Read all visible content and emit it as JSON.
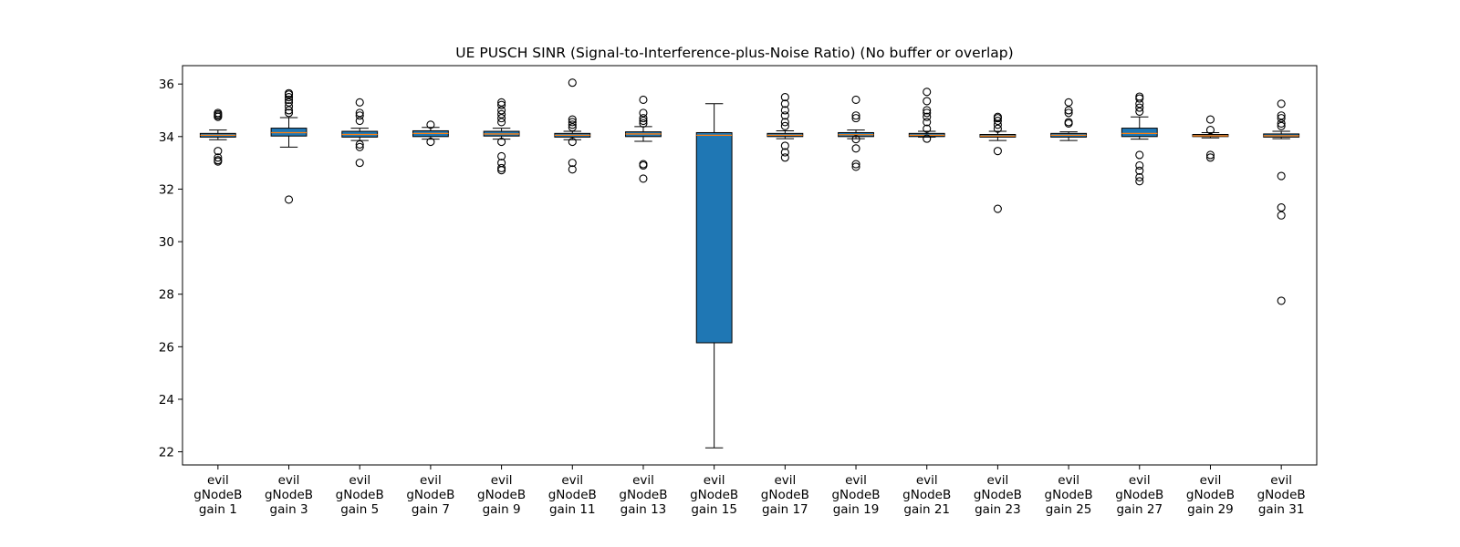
{
  "chart_data": {
    "type": "box",
    "title": "UE PUSCH SINR (Signal-to-Interference-plus-Noise Ratio) (No buffer or overlap)",
    "xlabel": "",
    "ylabel": "",
    "ylim": [
      21.5,
      36.7
    ],
    "yticks": [
      22,
      24,
      26,
      28,
      30,
      32,
      34,
      36
    ],
    "grid": false,
    "colors": {
      "box": "#1f77b4",
      "median": "#ff7f0e",
      "outline": "#000000",
      "background": "#ffffff"
    },
    "categories": [
      [
        "evil",
        "gNodeB",
        "gain 1"
      ],
      [
        "evil",
        "gNodeB",
        "gain 3"
      ],
      [
        "evil",
        "gNodeB",
        "gain 5"
      ],
      [
        "evil",
        "gNodeB",
        "gain 7"
      ],
      [
        "evil",
        "gNodeB",
        "gain 9"
      ],
      [
        "evil",
        "gNodeB",
        "gain 11"
      ],
      [
        "evil",
        "gNodeB",
        "gain 13"
      ],
      [
        "evil",
        "gNodeB",
        "gain 15"
      ],
      [
        "evil",
        "gNodeB",
        "gain 17"
      ],
      [
        "evil",
        "gNodeB",
        "gain 19"
      ],
      [
        "evil",
        "gNodeB",
        "gain 21"
      ],
      [
        "evil",
        "gNodeB",
        "gain 23"
      ],
      [
        "evil",
        "gNodeB",
        "gain 25"
      ],
      [
        "evil",
        "gNodeB",
        "gain 27"
      ],
      [
        "evil",
        "gNodeB",
        "gain 29"
      ],
      [
        "evil",
        "gNodeB",
        "gain 31"
      ]
    ],
    "boxes": [
      {
        "q1": 33.98,
        "median": 34.05,
        "q3": 34.12,
        "whisker_low": 33.88,
        "whisker_high": 34.25,
        "outliers": [
          34.75,
          34.8,
          34.85,
          34.9,
          33.45,
          33.2,
          33.1,
          33.05
        ]
      },
      {
        "q1": 34.02,
        "median": 34.15,
        "q3": 34.32,
        "whisker_low": 33.6,
        "whisker_high": 34.72,
        "outliers": [
          34.9,
          35.0,
          35.15,
          35.3,
          35.4,
          35.5,
          35.6,
          35.65,
          31.6
        ]
      },
      {
        "q1": 33.98,
        "median": 34.08,
        "q3": 34.2,
        "whisker_low": 33.85,
        "whisker_high": 34.32,
        "outliers": [
          34.6,
          34.8,
          34.9,
          35.3,
          33.7,
          33.6,
          33.0
        ]
      },
      {
        "q1": 34.0,
        "median": 34.12,
        "q3": 34.22,
        "whisker_low": 33.9,
        "whisker_high": 34.35,
        "outliers": [
          34.45,
          33.8
        ]
      },
      {
        "q1": 34.02,
        "median": 34.1,
        "q3": 34.2,
        "whisker_low": 33.9,
        "whisker_high": 34.32,
        "outliers": [
          34.55,
          34.7,
          34.85,
          35.0,
          35.2,
          35.3,
          33.8,
          33.25,
          33.0,
          32.8,
          32.72
        ]
      },
      {
        "q1": 33.98,
        "median": 34.05,
        "q3": 34.12,
        "whisker_low": 33.88,
        "whisker_high": 34.2,
        "outliers": [
          34.35,
          34.45,
          34.55,
          34.65,
          33.8,
          33.0,
          32.75,
          36.05
        ]
      },
      {
        "q1": 34.0,
        "median": 34.1,
        "q3": 34.18,
        "whisker_low": 33.82,
        "whisker_high": 34.38,
        "outliers": [
          34.5,
          34.6,
          34.7,
          34.9,
          35.4,
          32.95,
          32.9,
          32.4
        ]
      },
      {
        "q1": 26.15,
        "median": 34.05,
        "q3": 34.15,
        "whisker_low": 22.15,
        "whisker_high": 35.25,
        "outliers": []
      },
      {
        "q1": 34.0,
        "median": 34.05,
        "q3": 34.12,
        "whisker_low": 33.92,
        "whisker_high": 34.22,
        "outliers": [
          34.4,
          34.55,
          34.8,
          35.0,
          35.25,
          35.5,
          33.65,
          33.4,
          33.2
        ]
      },
      {
        "q1": 34.0,
        "median": 34.07,
        "q3": 34.15,
        "whisker_low": 33.92,
        "whisker_high": 34.25,
        "outliers": [
          34.7,
          34.8,
          35.4,
          33.9,
          33.55,
          32.95,
          32.85
        ]
      },
      {
        "q1": 34.0,
        "median": 34.05,
        "q3": 34.12,
        "whisker_low": 33.98,
        "whisker_high": 34.2,
        "outliers": [
          34.3,
          34.55,
          34.75,
          34.9,
          35.0,
          35.35,
          35.7,
          33.92
        ]
      },
      {
        "q1": 33.98,
        "median": 34.02,
        "q3": 34.08,
        "whisker_low": 33.85,
        "whisker_high": 34.2,
        "outliers": [
          34.3,
          34.45,
          34.6,
          34.7,
          34.75,
          33.45,
          31.25
        ]
      },
      {
        "q1": 33.98,
        "median": 34.05,
        "q3": 34.12,
        "whisker_low": 33.85,
        "whisker_high": 34.18,
        "outliers": [
          34.5,
          34.55,
          34.9,
          35.0,
          35.3
        ]
      },
      {
        "q1": 34.0,
        "median": 34.12,
        "q3": 34.32,
        "whisker_low": 33.9,
        "whisker_high": 34.75,
        "outliers": [
          34.95,
          35.1,
          35.25,
          35.45,
          35.52,
          33.3,
          32.9,
          32.7,
          32.45,
          32.3
        ]
      },
      {
        "q1": 34.0,
        "median": 34.03,
        "q3": 34.08,
        "whisker_low": 33.95,
        "whisker_high": 34.15,
        "outliers": [
          34.25,
          34.65,
          33.3,
          33.2
        ]
      },
      {
        "q1": 33.98,
        "median": 34.03,
        "q3": 34.1,
        "whisker_low": 33.92,
        "whisker_high": 34.2,
        "outliers": [
          34.4,
          34.5,
          34.7,
          34.8,
          35.25,
          32.5,
          31.3,
          31.0,
          27.75
        ]
      }
    ]
  }
}
